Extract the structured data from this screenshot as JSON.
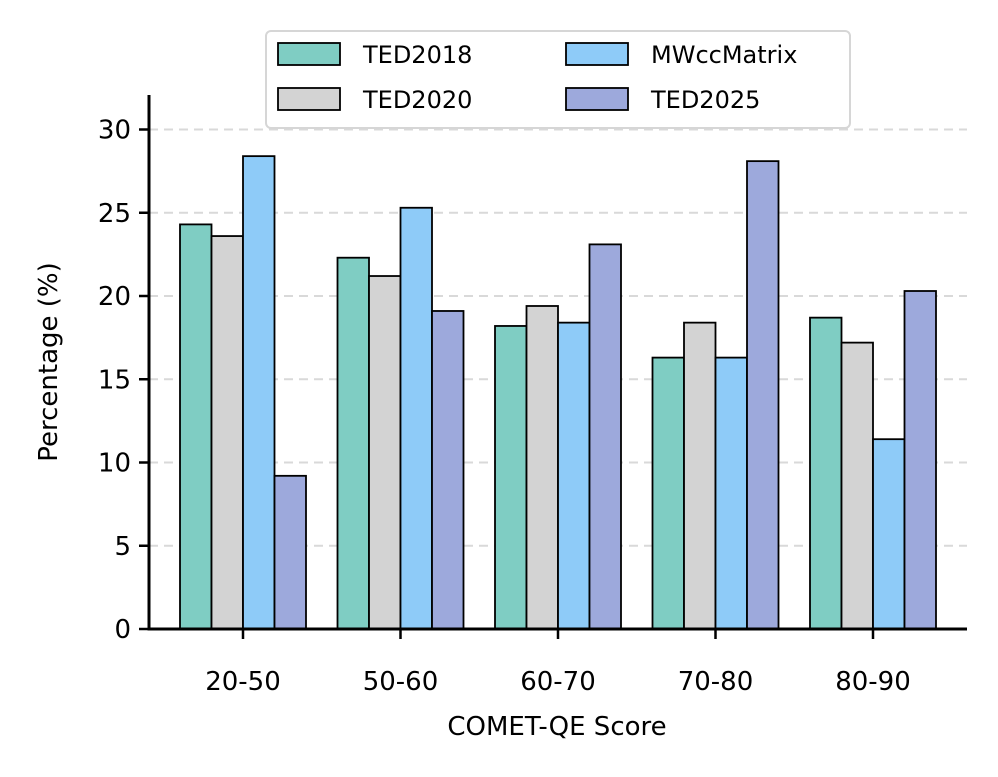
{
  "chart_data": {
    "type": "bar",
    "title": "",
    "xlabel": "COMET-QE Score",
    "ylabel": "Percentage (%)",
    "categories": [
      "20-50",
      "50-60",
      "60-70",
      "70-80",
      "80-90"
    ],
    "ylim": [
      0,
      32
    ],
    "yticks": [
      0,
      5,
      10,
      15,
      20,
      25,
      30
    ],
    "grid": "y-dashed",
    "legend_position": "top-center",
    "series": [
      {
        "name": "TED2018",
        "color": "#7fcdc3",
        "values": [
          24.3,
          22.3,
          18.2,
          16.3,
          18.7
        ]
      },
      {
        "name": "TED2020",
        "color": "#d3d3d3",
        "values": [
          23.6,
          21.2,
          19.4,
          18.4,
          17.2
        ]
      },
      {
        "name": "MWccMatrix",
        "color": "#8ecbf8",
        "values": [
          28.4,
          25.3,
          18.4,
          16.3,
          11.4
        ]
      },
      {
        "name": "TED2025",
        "color": "#9da9dc",
        "values": [
          9.2,
          19.1,
          23.1,
          28.1,
          20.3
        ]
      }
    ]
  }
}
